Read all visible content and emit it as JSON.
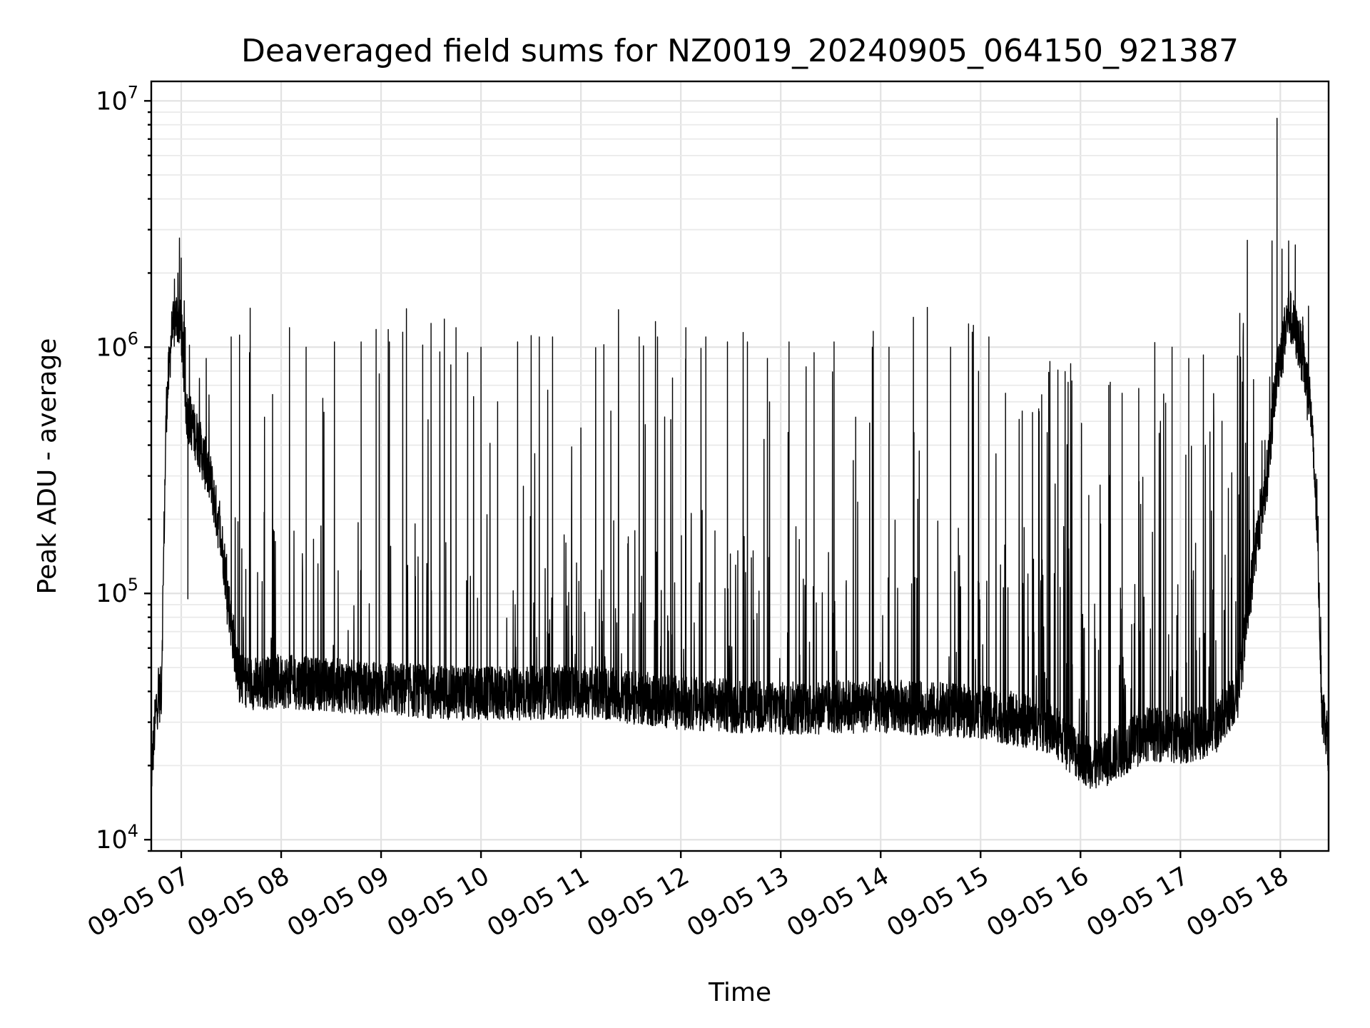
{
  "chart_data": {
    "type": "line",
    "title": "Deaveraged field sums for NZ0019_20240905_064150_921387",
    "xlabel": "Time",
    "ylabel": "Peak ADU - average",
    "yscale": "log",
    "ylim": [
      9000,
      12000000
    ],
    "xlim": [
      "2024-09-05 06:42",
      "2024-09-05 18:29"
    ],
    "grid": "both, major and minor, light gray",
    "legend": "none",
    "color": "#000000",
    "x_ticks": [
      "09-05 07",
      "09-05 08",
      "09-05 09",
      "09-05 10",
      "09-05 11",
      "09-05 12",
      "09-05 13",
      "09-05 14",
      "09-05 15",
      "09-05 16",
      "09-05 17",
      "09-05 18"
    ],
    "y_ticks": [
      {
        "value": 10000,
        "base": "10",
        "exp": "4"
      },
      {
        "value": 100000,
        "base": "10",
        "exp": "5"
      },
      {
        "value": 1000000,
        "base": "10",
        "exp": "6"
      },
      {
        "value": 10000000,
        "base": "10",
        "exp": "7"
      }
    ],
    "series": [
      {
        "baseline": [
          [
            "2024-09-05 06:42",
            18000
          ],
          [
            "2024-09-05 06:45",
            35000
          ],
          [
            "2024-09-05 06:48",
            40000
          ],
          [
            "2024-09-05 06:51",
            550000
          ],
          [
            "2024-09-05 06:54",
            1100000
          ],
          [
            "2024-09-05 06:57",
            1350000
          ],
          [
            "2024-09-05 07:00",
            1200000
          ],
          [
            "2024-09-05 07:03",
            550000
          ],
          [
            "2024-09-05 07:10",
            420000
          ],
          [
            "2024-09-05 07:18",
            280000
          ],
          [
            "2024-09-05 07:25",
            150000
          ],
          [
            "2024-09-05 07:30",
            75000
          ],
          [
            "2024-09-05 07:35",
            45000
          ],
          [
            "2024-09-05 07:45",
            43000
          ],
          [
            "2024-09-05 08:00",
            44000
          ],
          [
            "2024-09-05 09:00",
            41000
          ],
          [
            "2024-09-05 10:00",
            39000
          ],
          [
            "2024-09-05 11:00",
            40000
          ],
          [
            "2024-09-05 12:00",
            36000
          ],
          [
            "2024-09-05 13:00",
            34000
          ],
          [
            "2024-09-05 14:00",
            35000
          ],
          [
            "2024-09-05 15:00",
            33000
          ],
          [
            "2024-09-05 15:40",
            29000
          ],
          [
            "2024-09-05 16:00",
            22000
          ],
          [
            "2024-09-05 16:10",
            20000
          ],
          [
            "2024-09-05 16:40",
            27000
          ],
          [
            "2024-09-05 17:00",
            26000
          ],
          [
            "2024-09-05 17:20",
            28000
          ],
          [
            "2024-09-05 17:35",
            40000
          ],
          [
            "2024-09-05 17:45",
            150000
          ],
          [
            "2024-09-05 17:52",
            300000
          ],
          [
            "2024-09-05 17:58",
            800000
          ],
          [
            "2024-09-05 18:05",
            1400000
          ],
          [
            "2024-09-05 18:12",
            1000000
          ],
          [
            "2024-09-05 18:18",
            600000
          ],
          [
            "2024-09-05 18:22",
            200000
          ],
          [
            "2024-09-05 18:25",
            35000
          ],
          [
            "2024-09-05 18:29",
            25000
          ]
        ],
        "peaks": [
          [
            "2024-09-05 06:58",
            2000000
          ],
          [
            "2024-09-05 07:00",
            2300000
          ],
          [
            "2024-09-05 07:04",
            95000
          ],
          [
            "2024-09-05 07:15",
            900000
          ],
          [
            "2024-09-05 07:30",
            1100000
          ],
          [
            "2024-09-05 07:35",
            1120000
          ],
          [
            "2024-09-05 07:41",
            950000
          ],
          [
            "2024-09-05 07:50",
            520000
          ],
          [
            "2024-09-05 08:05",
            1200000
          ],
          [
            "2024-09-05 08:15",
            1000000
          ],
          [
            "2024-09-05 08:25",
            620000
          ],
          [
            "2024-09-05 08:32",
            1050000
          ],
          [
            "2024-09-05 08:48",
            1050000
          ],
          [
            "2024-09-05 08:57",
            1180000
          ],
          [
            "2024-09-05 09:05",
            1050000
          ],
          [
            "2024-09-05 09:13",
            1150000
          ],
          [
            "2024-09-05 09:25",
            1020000
          ],
          [
            "2024-09-05 09:30",
            1250000
          ],
          [
            "2024-09-05 09:38",
            1300000
          ],
          [
            "2024-09-05 09:45",
            1200000
          ],
          [
            "2024-09-05 09:52",
            950000
          ],
          [
            "2024-09-05 10:00",
            1000000
          ],
          [
            "2024-09-05 10:10",
            600000
          ],
          [
            "2024-09-05 10:22",
            1050000
          ],
          [
            "2024-09-05 10:35",
            1100000
          ],
          [
            "2024-09-05 10:43",
            1100000
          ],
          [
            "2024-09-05 11:00",
            470000
          ],
          [
            "2024-09-05 11:18",
            550000
          ],
          [
            "2024-09-05 11:35",
            1100000
          ],
          [
            "2024-09-05 11:46",
            1100000
          ],
          [
            "2024-09-05 11:55",
            750000
          ],
          [
            "2024-09-05 12:03",
            1200000
          ],
          [
            "2024-09-05 12:15",
            1100000
          ],
          [
            "2024-09-05 12:28",
            1050000
          ],
          [
            "2024-09-05 12:40",
            1050000
          ],
          [
            "2024-09-05 12:52",
            900000
          ],
          [
            "2024-09-05 13:05",
            1050000
          ],
          [
            "2024-09-05 13:20",
            950000
          ],
          [
            "2024-09-05 13:32",
            1050000
          ],
          [
            "2024-09-05 13:45",
            520000
          ],
          [
            "2024-09-05 13:55",
            1000000
          ],
          [
            "2024-09-05 14:05",
            1000000
          ],
          [
            "2024-09-05 14:20",
            450000
          ],
          [
            "2024-09-05 14:28",
            1450000
          ],
          [
            "2024-09-05 14:42",
            1000000
          ],
          [
            "2024-09-05 14:55",
            1150000
          ],
          [
            "2024-09-05 15:05",
            1100000
          ],
          [
            "2024-09-05 15:15",
            650000
          ],
          [
            "2024-09-05 15:25",
            550000
          ],
          [
            "2024-09-05 15:40",
            450000
          ],
          [
            "2024-09-05 16:05",
            250000
          ],
          [
            "2024-09-05 16:17",
            700000
          ],
          [
            "2024-09-05 16:25",
            650000
          ],
          [
            "2024-09-05 16:35",
            680000
          ],
          [
            "2024-09-05 16:48",
            500000
          ],
          [
            "2024-09-05 16:55",
            1000000
          ],
          [
            "2024-09-05 17:05",
            900000
          ],
          [
            "2024-09-05 17:15",
            400000
          ],
          [
            "2024-09-05 17:25",
            500000
          ],
          [
            "2024-09-05 17:40",
            500000
          ],
          [
            "2024-09-05 17:55",
            2700000
          ],
          [
            "2024-09-05 17:58",
            8500000
          ],
          [
            "2024-09-05 18:01",
            2500000
          ],
          [
            "2024-09-05 18:05",
            2700000
          ],
          [
            "2024-09-05 18:09",
            2600000
          ]
        ]
      }
    ]
  }
}
